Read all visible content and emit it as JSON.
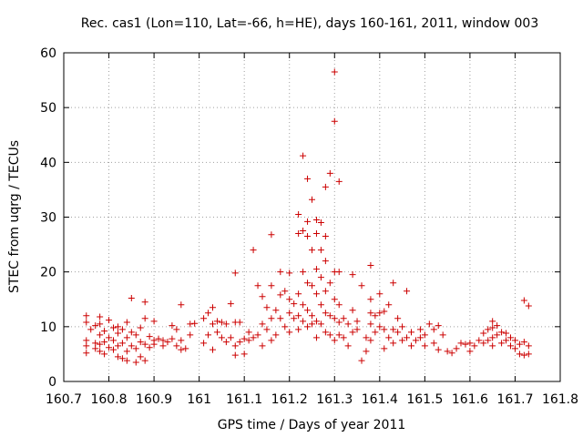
{
  "chart_data": {
    "type": "scatter",
    "title": "Rec. cas1 (Lon=110, Lat=-66, h=HE), days 160-161, 2011, window 003",
    "xlabel": "GPS time / Days of year 2011",
    "ylabel": "STEC from uqrg / TECUs",
    "xlim": [
      160.7,
      161.8
    ],
    "ylim": [
      0,
      60
    ],
    "x_ticks": [
      "160.7",
      "160.8",
      "160.9",
      "161",
      "161.1",
      "161.2",
      "161.3",
      "161.4",
      "161.5",
      "161.6",
      "161.7",
      "161.8"
    ],
    "y_ticks": [
      "0",
      "10",
      "20",
      "30",
      "40",
      "50",
      "60"
    ],
    "grid": true,
    "marker": "plus",
    "color": "#cc0000",
    "points": [
      [
        160.75,
        12.0
      ],
      [
        160.75,
        10.8
      ],
      [
        160.75,
        7.5
      ],
      [
        160.75,
        6.5
      ],
      [
        160.75,
        5.2
      ],
      [
        160.76,
        9.5
      ],
      [
        160.77,
        10.2
      ],
      [
        160.77,
        7.0
      ],
      [
        160.77,
        6.0
      ],
      [
        160.78,
        11.8
      ],
      [
        160.78,
        10.5
      ],
      [
        160.78,
        8.5
      ],
      [
        160.78,
        6.8
      ],
      [
        160.78,
        5.5
      ],
      [
        160.79,
        9.2
      ],
      [
        160.79,
        7.2
      ],
      [
        160.79,
        5.0
      ],
      [
        160.8,
        11.2
      ],
      [
        160.8,
        8.0
      ],
      [
        160.8,
        6.2
      ],
      [
        160.81,
        9.8
      ],
      [
        160.81,
        7.5
      ],
      [
        160.81,
        5.8
      ],
      [
        160.82,
        10.0
      ],
      [
        160.82,
        8.8
      ],
      [
        160.82,
        6.5
      ],
      [
        160.82,
        4.5
      ],
      [
        160.83,
        9.5
      ],
      [
        160.83,
        7.0
      ],
      [
        160.83,
        4.2
      ],
      [
        160.84,
        10.8
      ],
      [
        160.84,
        8.0
      ],
      [
        160.84,
        5.5
      ],
      [
        160.84,
        3.8
      ],
      [
        160.85,
        15.2
      ],
      [
        160.85,
        9.0
      ],
      [
        160.85,
        6.5
      ],
      [
        160.86,
        8.5
      ],
      [
        160.86,
        6.0
      ],
      [
        160.86,
        3.5
      ],
      [
        160.87,
        9.8
      ],
      [
        160.87,
        7.2
      ],
      [
        160.87,
        4.5
      ],
      [
        160.88,
        14.5
      ],
      [
        160.88,
        11.5
      ],
      [
        160.88,
        6.8
      ],
      [
        160.88,
        3.8
      ],
      [
        160.89,
        8.2
      ],
      [
        160.89,
        6.2
      ],
      [
        160.9,
        11.0
      ],
      [
        160.9,
        7.5
      ],
      [
        160.9,
        6.8
      ],
      [
        160.91,
        7.8
      ],
      [
        160.92,
        7.5
      ],
      [
        160.92,
        6.5
      ],
      [
        160.93,
        7.2
      ],
      [
        160.94,
        10.2
      ],
      [
        160.94,
        7.8
      ],
      [
        160.95,
        9.5
      ],
      [
        160.95,
        6.5
      ],
      [
        160.96,
        14.0
      ],
      [
        160.96,
        7.5
      ],
      [
        160.96,
        5.8
      ],
      [
        160.97,
        6.0
      ],
      [
        160.98,
        10.5
      ],
      [
        160.98,
        8.5
      ],
      [
        160.99,
        10.6
      ],
      [
        161.01,
        11.5
      ],
      [
        161.01,
        7.0
      ],
      [
        161.02,
        12.5
      ],
      [
        161.02,
        8.5
      ],
      [
        161.03,
        13.5
      ],
      [
        161.03,
        10.5
      ],
      [
        161.03,
        5.8
      ],
      [
        161.04,
        11.0
      ],
      [
        161.04,
        9.0
      ],
      [
        161.05,
        10.8
      ],
      [
        161.05,
        8.0
      ],
      [
        161.06,
        10.5
      ],
      [
        161.06,
        7.2
      ],
      [
        161.07,
        14.2
      ],
      [
        161.07,
        8.0
      ],
      [
        161.08,
        19.8
      ],
      [
        161.08,
        10.8
      ],
      [
        161.08,
        6.5
      ],
      [
        161.08,
        4.8
      ],
      [
        161.09,
        10.8
      ],
      [
        161.09,
        7.2
      ],
      [
        161.1,
        7.8
      ],
      [
        161.1,
        5.0
      ],
      [
        161.11,
        9.0
      ],
      [
        161.11,
        7.5
      ],
      [
        161.12,
        24.0
      ],
      [
        161.12,
        8.0
      ],
      [
        161.13,
        17.5
      ],
      [
        161.13,
        8.5
      ],
      [
        161.14,
        15.5
      ],
      [
        161.14,
        10.5
      ],
      [
        161.14,
        6.5
      ],
      [
        161.15,
        13.5
      ],
      [
        161.15,
        9.5
      ],
      [
        161.16,
        26.8
      ],
      [
        161.16,
        17.5
      ],
      [
        161.16,
        11.5
      ],
      [
        161.16,
        7.5
      ],
      [
        161.17,
        13.0
      ],
      [
        161.17,
        8.5
      ],
      [
        161.18,
        20.0
      ],
      [
        161.18,
        15.8
      ],
      [
        161.18,
        11.5
      ],
      [
        161.19,
        16.5
      ],
      [
        161.19,
        10.0
      ],
      [
        161.2,
        19.8
      ],
      [
        161.2,
        15.0
      ],
      [
        161.2,
        12.5
      ],
      [
        161.2,
        9.0
      ],
      [
        161.21,
        14.2
      ],
      [
        161.21,
        11.5
      ],
      [
        161.22,
        30.5
      ],
      [
        161.22,
        27.0
      ],
      [
        161.22,
        16.0
      ],
      [
        161.22,
        12.0
      ],
      [
        161.22,
        9.5
      ],
      [
        161.23,
        41.2
      ],
      [
        161.23,
        27.5
      ],
      [
        161.23,
        20.0
      ],
      [
        161.23,
        14.0
      ],
      [
        161.23,
        11.0
      ],
      [
        161.24,
        37.0
      ],
      [
        161.24,
        29.2
      ],
      [
        161.24,
        26.5
      ],
      [
        161.24,
        18.0
      ],
      [
        161.24,
        13.0
      ],
      [
        161.24,
        10.0
      ],
      [
        161.25,
        33.2
      ],
      [
        161.25,
        24.0
      ],
      [
        161.25,
        17.5
      ],
      [
        161.25,
        12.0
      ],
      [
        161.25,
        10.5
      ],
      [
        161.26,
        29.5
      ],
      [
        161.26,
        27.0
      ],
      [
        161.26,
        20.5
      ],
      [
        161.26,
        16.0
      ],
      [
        161.26,
        11.0
      ],
      [
        161.26,
        8.0
      ],
      [
        161.27,
        29.0
      ],
      [
        161.27,
        24.0
      ],
      [
        161.27,
        19.0
      ],
      [
        161.27,
        14.0
      ],
      [
        161.27,
        10.5
      ],
      [
        161.28,
        35.5
      ],
      [
        161.28,
        26.5
      ],
      [
        161.28,
        22.0
      ],
      [
        161.28,
        16.5
      ],
      [
        161.28,
        12.5
      ],
      [
        161.28,
        9.0
      ],
      [
        161.29,
        38.0
      ],
      [
        161.29,
        18.0
      ],
      [
        161.29,
        12.0
      ],
      [
        161.29,
        8.5
      ],
      [
        161.3,
        56.5
      ],
      [
        161.3,
        47.5
      ],
      [
        161.3,
        20.0
      ],
      [
        161.3,
        15.0
      ],
      [
        161.3,
        11.5
      ],
      [
        161.3,
        7.5
      ],
      [
        161.31,
        36.5
      ],
      [
        161.31,
        20.0
      ],
      [
        161.31,
        14.0
      ],
      [
        161.31,
        10.8
      ],
      [
        161.31,
        8.5
      ],
      [
        161.32,
        11.5
      ],
      [
        161.32,
        8.0
      ],
      [
        161.33,
        10.5
      ],
      [
        161.33,
        6.5
      ],
      [
        161.34,
        19.5
      ],
      [
        161.34,
        13.0
      ],
      [
        161.34,
        9.0
      ],
      [
        161.35,
        11.0
      ],
      [
        161.35,
        9.5
      ],
      [
        161.36,
        17.5
      ],
      [
        161.36,
        3.8
      ],
      [
        161.37,
        8.0
      ],
      [
        161.37,
        5.5
      ],
      [
        161.38,
        21.2
      ],
      [
        161.38,
        15.0
      ],
      [
        161.38,
        12.5
      ],
      [
        161.38,
        10.5
      ],
      [
        161.38,
        7.5
      ],
      [
        161.39,
        12.0
      ],
      [
        161.39,
        9.0
      ],
      [
        161.4,
        16.0
      ],
      [
        161.4,
        12.5
      ],
      [
        161.4,
        10.0
      ],
      [
        161.41,
        12.8
      ],
      [
        161.41,
        9.5
      ],
      [
        161.41,
        6.0
      ],
      [
        161.42,
        14.0
      ],
      [
        161.42,
        8.0
      ],
      [
        161.43,
        18.0
      ],
      [
        161.43,
        9.5
      ],
      [
        161.43,
        7.0
      ],
      [
        161.44,
        11.5
      ],
      [
        161.44,
        9.0
      ],
      [
        161.45,
        10.0
      ],
      [
        161.45,
        7.5
      ],
      [
        161.46,
        16.5
      ],
      [
        161.46,
        8.0
      ],
      [
        161.47,
        9.0
      ],
      [
        161.47,
        6.5
      ],
      [
        161.48,
        7.5
      ],
      [
        161.49,
        9.5
      ],
      [
        161.49,
        8.0
      ],
      [
        161.5,
        8.5
      ],
      [
        161.5,
        6.5
      ],
      [
        161.51,
        10.5
      ],
      [
        161.52,
        9.5
      ],
      [
        161.52,
        7.0
      ],
      [
        161.53,
        10.2
      ],
      [
        161.53,
        5.8
      ],
      [
        161.54,
        8.5
      ],
      [
        161.55,
        5.5
      ],
      [
        161.56,
        5.2
      ],
      [
        161.57,
        6.0
      ],
      [
        161.58,
        7.0
      ],
      [
        161.59,
        6.8
      ],
      [
        161.6,
        7.0
      ],
      [
        161.6,
        5.5
      ],
      [
        161.61,
        6.5
      ],
      [
        161.62,
        7.5
      ],
      [
        161.63,
        8.8
      ],
      [
        161.63,
        7.0
      ],
      [
        161.64,
        9.5
      ],
      [
        161.64,
        7.5
      ],
      [
        161.65,
        11.0
      ],
      [
        161.65,
        9.8
      ],
      [
        161.65,
        8.0
      ],
      [
        161.65,
        6.5
      ],
      [
        161.66,
        10.2
      ],
      [
        161.66,
        8.5
      ],
      [
        161.67,
        9.0
      ],
      [
        161.67,
        7.0
      ],
      [
        161.68,
        8.8
      ],
      [
        161.68,
        7.5
      ],
      [
        161.69,
        8.0
      ],
      [
        161.69,
        6.5
      ],
      [
        161.7,
        7.5
      ],
      [
        161.7,
        6.0
      ],
      [
        161.71,
        6.8
      ],
      [
        161.71,
        5.0
      ],
      [
        161.72,
        14.8
      ],
      [
        161.72,
        7.2
      ],
      [
        161.72,
        4.8
      ],
      [
        161.73,
        13.8
      ],
      [
        161.73,
        6.5
      ],
      [
        161.73,
        5.0
      ]
    ]
  }
}
